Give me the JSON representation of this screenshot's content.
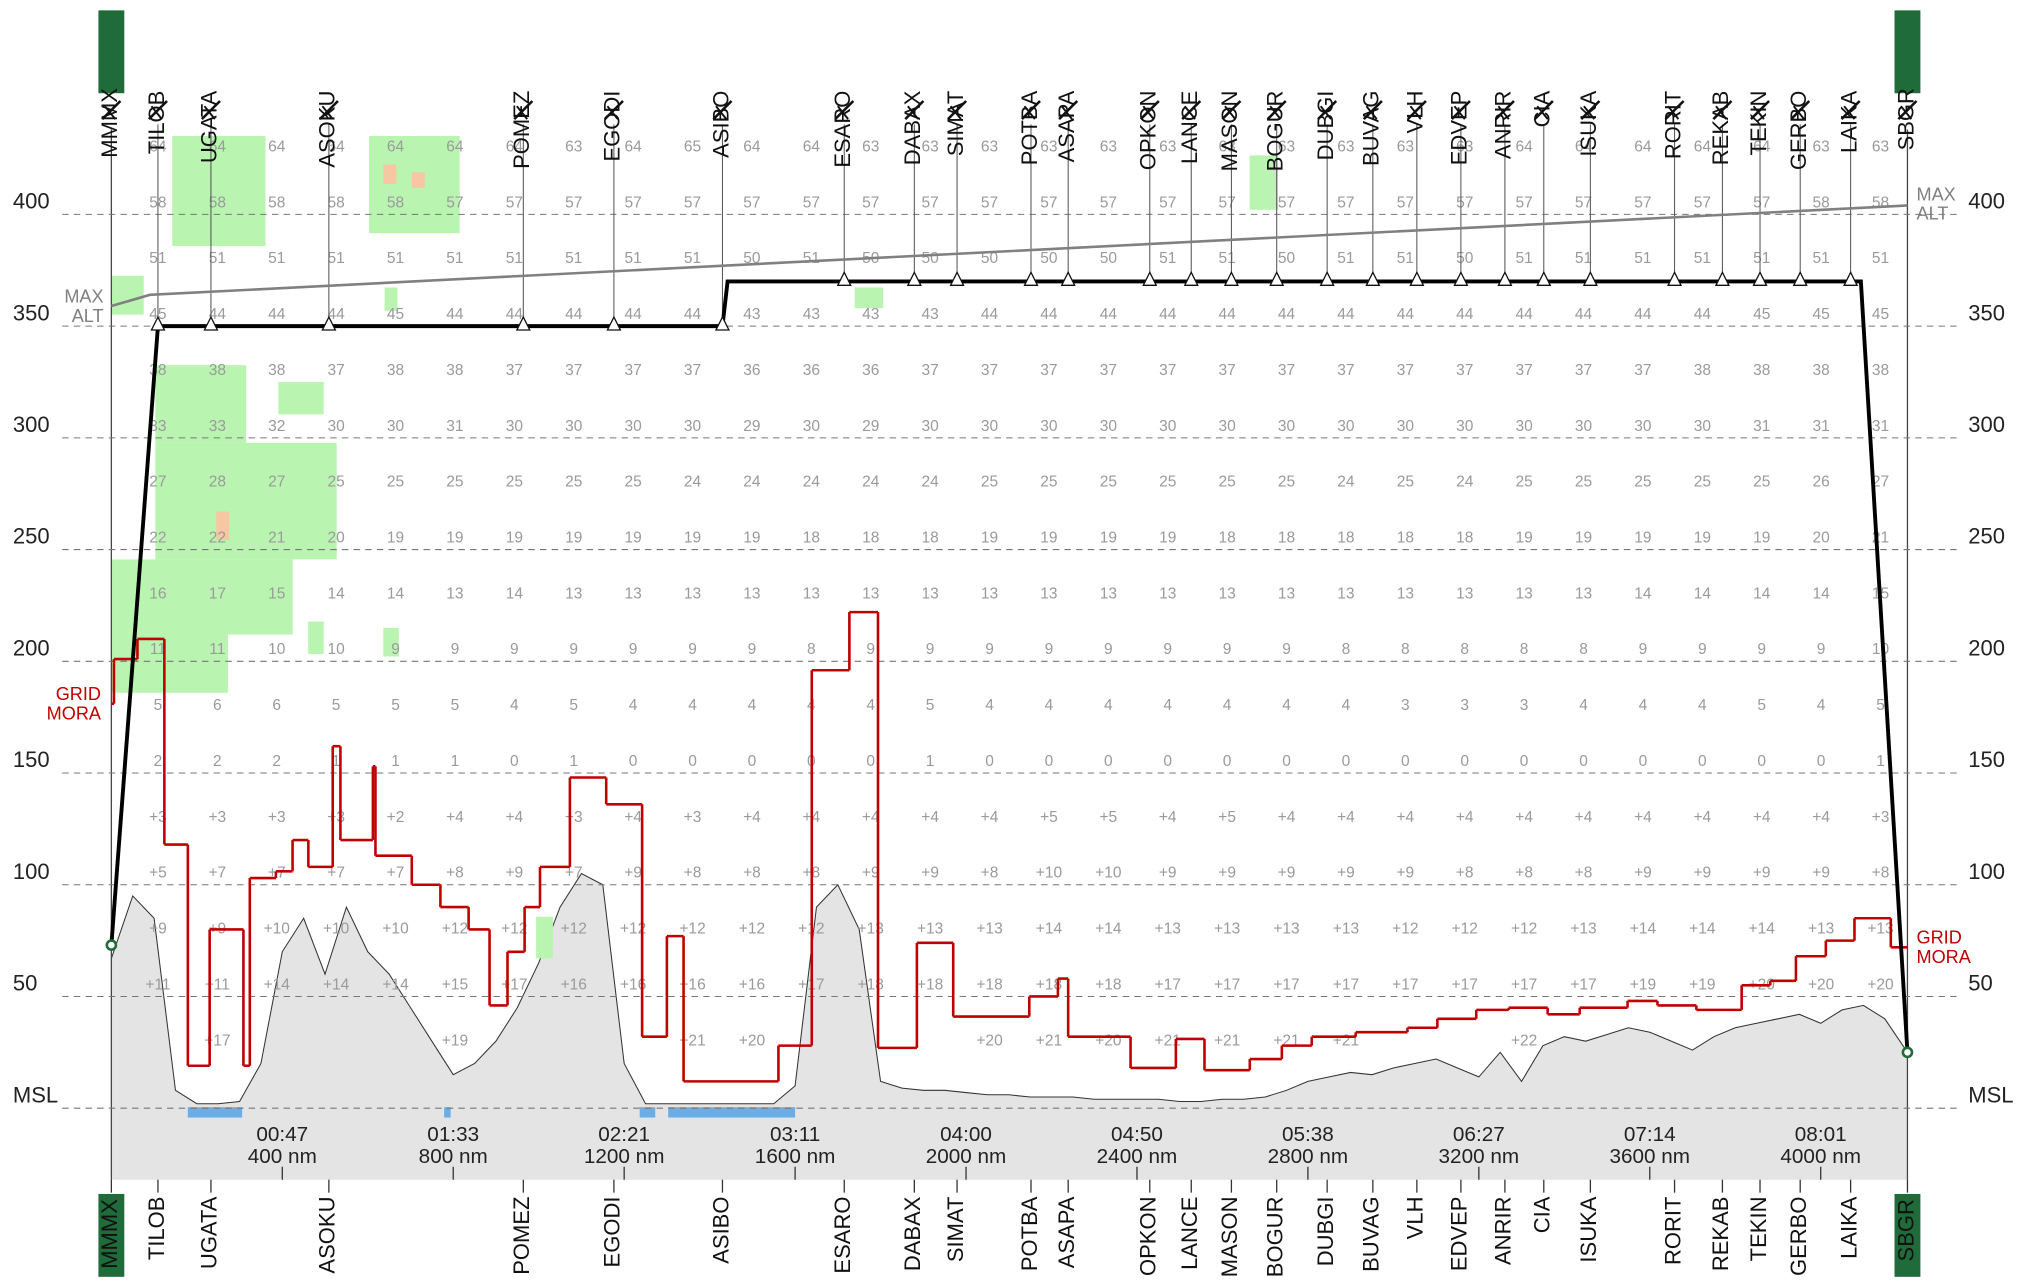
{
  "chart_data": {
    "type": "vertical-profile",
    "xlim": [
      0,
      4203
    ],
    "ylim": [
      -32,
      438
    ],
    "yticks": [
      {
        "value": 0,
        "label": "MSL"
      },
      50,
      100,
      150,
      200,
      250,
      300,
      350,
      400
    ],
    "xticks": [
      {
        "value": 400,
        "label": "400 nm"
      },
      {
        "value": 800,
        "label": "800 nm"
      },
      {
        "value": 1200,
        "label": "1200 nm"
      },
      {
        "value": 1600,
        "label": "1600 nm"
      },
      {
        "value": 2000,
        "label": "2000 nm"
      },
      {
        "value": 2400,
        "label": "2400 nm"
      },
      {
        "value": 2800,
        "label": "2800 nm"
      },
      {
        "value": 3200,
        "label": "3200 nm"
      },
      {
        "value": 3600,
        "label": "3600 nm"
      },
      {
        "value": 4000,
        "label": "4000 nm"
      }
    ],
    "xtick_times": [
      "00:47",
      "01:33",
      "02:21",
      "03:11",
      "04:00",
      "04:50",
      "05:38",
      "06:27",
      "07:14",
      "08:01"
    ],
    "waypoints": {
      "names": [
        "MMMX",
        "TILOB",
        "UGATA",
        "ASOKU",
        "POMEZ",
        "EGODI",
        "ASIBO",
        "ESARO",
        "DABAX",
        "SIMAT",
        "POTBA",
        "ASAPA",
        "OPKON",
        "LANCE",
        "MASON",
        "BOGUR",
        "DUBGI",
        "BUVAG",
        "VLH",
        "EDVEP",
        "ANRIR",
        "CIA",
        "ISUKA",
        "RORIT",
        "REKAB",
        "TEKIN",
        "GERBO",
        "LAIKA",
        "SBGR"
      ],
      "x": [
        0,
        109,
        233,
        509,
        964,
        1176,
        1430,
        1715,
        1879,
        1979,
        2152,
        2239,
        2430,
        2527,
        2621,
        2727,
        2845,
        2952,
        3055,
        3158,
        3261,
        3352,
        3461,
        3658,
        3770,
        3858,
        3952,
        4070,
        4203
      ]
    },
    "route": {
      "color": "#000000",
      "x": [
        0,
        109,
        1430,
        1442,
        4094,
        4203
      ],
      "values": [
        73,
        350,
        350,
        370,
        370,
        25
      ]
    },
    "max_alt": {
      "label": [
        "MAX",
        "ALT"
      ],
      "color": "#808080",
      "x": [
        0,
        90,
        4203
      ],
      "values": [
        359,
        364,
        404
      ]
    },
    "mora": {
      "label": [
        "GRID",
        "MORA"
      ],
      "color": "#c00000",
      "x": [
        0,
        6,
        61,
        124,
        179,
        230,
        309,
        324,
        385,
        424,
        461,
        518,
        536,
        612,
        618,
        703,
        770,
        836,
        885,
        927,
        967,
        1003,
        1073,
        1158,
        1242,
        1300,
        1339,
        1561,
        1639,
        1727,
        1794,
        1885,
        1970,
        2148,
        2215,
        2239,
        2385,
        2491,
        2558,
        2664,
        2739,
        2809,
        2912,
        3033,
        3103,
        3194,
        3270,
        3361,
        3436,
        3548,
        3618,
        3709,
        3815,
        3882,
        3942,
        4012,
        4079,
        4164
      ],
      "values": [
        181,
        201,
        210,
        118,
        19,
        80,
        19,
        103,
        106,
        120,
        108,
        162,
        120,
        153,
        113,
        100,
        90,
        80,
        46,
        70,
        90,
        108,
        148,
        136,
        32,
        77,
        12,
        28,
        196,
        222,
        27,
        74,
        41,
        50,
        58,
        32,
        18,
        31,
        17,
        22,
        28,
        32,
        34,
        36,
        40,
        44,
        45,
        42,
        45,
        48,
        46,
        44,
        55,
        57,
        68,
        75,
        85,
        72
      ]
    },
    "terrain": {
      "color": "#e4e4e4",
      "x": [
        0,
        50,
        100,
        150,
        200,
        250,
        300,
        350,
        400,
        450,
        500,
        550,
        600,
        650,
        700,
        750,
        800,
        850,
        900,
        950,
        1000,
        1050,
        1100,
        1150,
        1200,
        1250,
        1300,
        1350,
        1400,
        1450,
        1500,
        1550,
        1600,
        1650,
        1700,
        1750,
        1800,
        1850,
        1900,
        1950,
        2000,
        2050,
        2100,
        2150,
        2200,
        2250,
        2300,
        2350,
        2400,
        2450,
        2500,
        2550,
        2600,
        2650,
        2700,
        2750,
        2800,
        2850,
        2900,
        2950,
        3000,
        3050,
        3100,
        3150,
        3200,
        3250,
        3300,
        3350,
        3400,
        3450,
        3500,
        3550,
        3600,
        3650,
        3700,
        3750,
        3800,
        3850,
        3900,
        3950,
        4000,
        4050,
        4100,
        4150,
        4203
      ],
      "values": [
        67,
        95,
        85,
        8,
        2,
        2,
        3,
        20,
        70,
        85,
        60,
        90,
        70,
        60,
        45,
        30,
        15,
        20,
        30,
        45,
        65,
        90,
        105,
        100,
        20,
        2,
        2,
        2,
        2,
        2,
        2,
        2,
        10,
        90,
        100,
        80,
        12,
        9,
        8,
        8,
        7,
        6,
        6,
        5,
        5,
        5,
        4,
        4,
        4,
        4,
        3,
        3,
        4,
        4,
        5,
        8,
        12,
        14,
        16,
        15,
        18,
        20,
        22,
        18,
        14,
        25,
        12,
        28,
        32,
        30,
        33,
        36,
        34,
        30,
        26,
        32,
        36,
        38,
        40,
        42,
        38,
        44,
        46,
        40,
        25
      ]
    },
    "temperature": {
      "x": [
        109,
        248,
        387,
        526,
        665,
        804,
        943,
        1082,
        1221,
        1360,
        1499,
        1638,
        1777,
        1916,
        2055,
        2194,
        2333,
        2472,
        2611,
        2750,
        2889,
        3028,
        3167,
        3306,
        3445,
        3584,
        3723,
        3862,
        4001,
        4140
      ],
      "levels": [
        430,
        405,
        380,
        355,
        330,
        305,
        280,
        255,
        230,
        205,
        180,
        155,
        130,
        105,
        80,
        55,
        30
      ],
      "rows": [
        [
          "64",
          "64",
          "64",
          "64",
          "64",
          "64",
          "64",
          "63",
          "64",
          "65",
          "64",
          "64",
          "63",
          "63",
          "63",
          "63",
          "63",
          "63",
          "63",
          "63",
          "63",
          "63",
          "63",
          "64",
          "64",
          "64",
          "64",
          "64",
          "63",
          "63"
        ],
        [
          "58",
          "58",
          "58",
          "58",
          "58",
          "57",
          "57",
          "57",
          "57",
          "57",
          "57",
          "57",
          "57",
          "57",
          "57",
          "57",
          "57",
          "57",
          "57",
          "57",
          "57",
          "57",
          "57",
          "57",
          "57",
          "57",
          "57",
          "57",
          "58",
          "58"
        ],
        [
          "51",
          "51",
          "51",
          "51",
          "51",
          "51",
          "51",
          "51",
          "51",
          "51",
          "50",
          "51",
          "50",
          "50",
          "50",
          "50",
          "50",
          "51",
          "51",
          "50",
          "51",
          "51",
          "50",
          "51",
          "51",
          "51",
          "51",
          "51",
          "51",
          "51"
        ],
        [
          "45",
          "44",
          "44",
          "44",
          "45",
          "44",
          "44",
          "44",
          "44",
          "44",
          "43",
          "43",
          "43",
          "43",
          "44",
          "44",
          "44",
          "44",
          "44",
          "44",
          "44",
          "44",
          "44",
          "44",
          "44",
          "44",
          "44",
          "45",
          "45",
          "45"
        ],
        [
          "38",
          "38",
          "38",
          "37",
          "38",
          "38",
          "37",
          "37",
          "37",
          "37",
          "36",
          "36",
          "36",
          "37",
          "37",
          "37",
          "37",
          "37",
          "37",
          "37",
          "37",
          "37",
          "37",
          "37",
          "37",
          "37",
          "38",
          "38",
          "38",
          "38"
        ],
        [
          "33",
          "33",
          "32",
          "30",
          "30",
          "31",
          "30",
          "30",
          "30",
          "30",
          "29",
          "30",
          "29",
          "30",
          "30",
          "30",
          "30",
          "30",
          "30",
          "30",
          "30",
          "30",
          "30",
          "30",
          "30",
          "30",
          "30",
          "31",
          "31",
          "31"
        ],
        [
          "27",
          "28",
          "27",
          "25",
          "25",
          "25",
          "25",
          "25",
          "25",
          "24",
          "24",
          "24",
          "24",
          "24",
          "25",
          "25",
          "25",
          "25",
          "25",
          "25",
          "24",
          "25",
          "24",
          "25",
          "25",
          "25",
          "25",
          "25",
          "26",
          "27"
        ],
        [
          "22",
          "22",
          "21",
          "20",
          "19",
          "19",
          "19",
          "19",
          "19",
          "19",
          "19",
          "18",
          "18",
          "18",
          "19",
          "19",
          "19",
          "19",
          "18",
          "18",
          "18",
          "18",
          "18",
          "19",
          "19",
          "19",
          "19",
          "19",
          "20",
          "21"
        ],
        [
          "16",
          "17",
          "15",
          "14",
          "14",
          "13",
          "14",
          "13",
          "13",
          "13",
          "13",
          "13",
          "13",
          "13",
          "13",
          "13",
          "13",
          "13",
          "13",
          "13",
          "13",
          "13",
          "13",
          "13",
          "13",
          "14",
          "14",
          "14",
          "14",
          "15"
        ],
        [
          "11",
          "11",
          "10",
          "10",
          "9",
          "9",
          "9",
          "9",
          "9",
          "9",
          "9",
          "8",
          "9",
          "9",
          "9",
          "9",
          "9",
          "9",
          "9",
          "9",
          "8",
          "8",
          "8",
          "8",
          "8",
          "9",
          "9",
          "9",
          "9",
          "10"
        ],
        [
          "5",
          "6",
          "6",
          "5",
          "5",
          "5",
          "4",
          "5",
          "4",
          "4",
          "4",
          "4",
          "4",
          "5",
          "4",
          "4",
          "4",
          "4",
          "4",
          "4",
          "4",
          "3",
          "3",
          "3",
          "4",
          "4",
          "4",
          "5",
          "4",
          "5"
        ],
        [
          "2",
          "2",
          "2",
          "1",
          "1",
          "1",
          "0",
          "1",
          "0",
          "0",
          "0",
          "0",
          "0",
          "1",
          "0",
          "0",
          "0",
          "0",
          "0",
          "0",
          "0",
          "0",
          "0",
          "0",
          "0",
          "0",
          "0",
          "0",
          "0",
          "1"
        ],
        [
          "+3",
          "+3",
          "+3",
          "+3",
          "+2",
          "+4",
          "+4",
          "+3",
          "+4",
          "+3",
          "+4",
          "+4",
          "+4",
          "+4",
          "+4",
          "+5",
          "+5",
          "+4",
          "+5",
          "+4",
          "+4",
          "+4",
          "+4",
          "+4",
          "+4",
          "+4",
          "+4",
          "+4",
          "+4",
          "+3"
        ],
        [
          "+5",
          "+7",
          "+7",
          "+7",
          "+7",
          "+8",
          "+9",
          "+7",
          "+9",
          "+8",
          "+8",
          "+8",
          "+9",
          "+9",
          "+8",
          "+10",
          "+10",
          "+9",
          "+9",
          "+9",
          "+9",
          "+9",
          "+8",
          "+8",
          "+8",
          "+9",
          "+9",
          "+9",
          "+9",
          "+8"
        ],
        [
          "+9",
          "+9",
          "+10",
          "+10",
          "+10",
          "+12",
          "+12",
          "+12",
          "+12",
          "+12",
          "+12",
          "+12",
          "+13",
          "+13",
          "+13",
          "+14",
          "+14",
          "+13",
          "+13",
          "+13",
          "+13",
          "+12",
          "+12",
          "+12",
          "+13",
          "+14",
          "+14",
          "+14",
          "+13",
          "+13"
        ],
        [
          "+11",
          "+11",
          "+14",
          "+14",
          "+14",
          "+15",
          "+17",
          "+16",
          "+16",
          "+16",
          "+16",
          "+17",
          "+18",
          "+18",
          "+18",
          "+18",
          "+18",
          "+17",
          "+17",
          "+17",
          "+17",
          "+17",
          "+17",
          "+17",
          "+17",
          "+19",
          "+19",
          "+20",
          "+20",
          "+20"
        ],
        [
          null,
          "+17",
          null,
          null,
          null,
          "+19",
          null,
          null,
          null,
          "+21",
          "+20",
          null,
          null,
          null,
          "+20",
          "+21",
          "+20",
          "+21",
          "+21",
          "+21",
          "+21",
          null,
          null,
          "+22",
          null,
          null,
          null,
          null,
          null,
          null
        ]
      ]
    }
  }
}
